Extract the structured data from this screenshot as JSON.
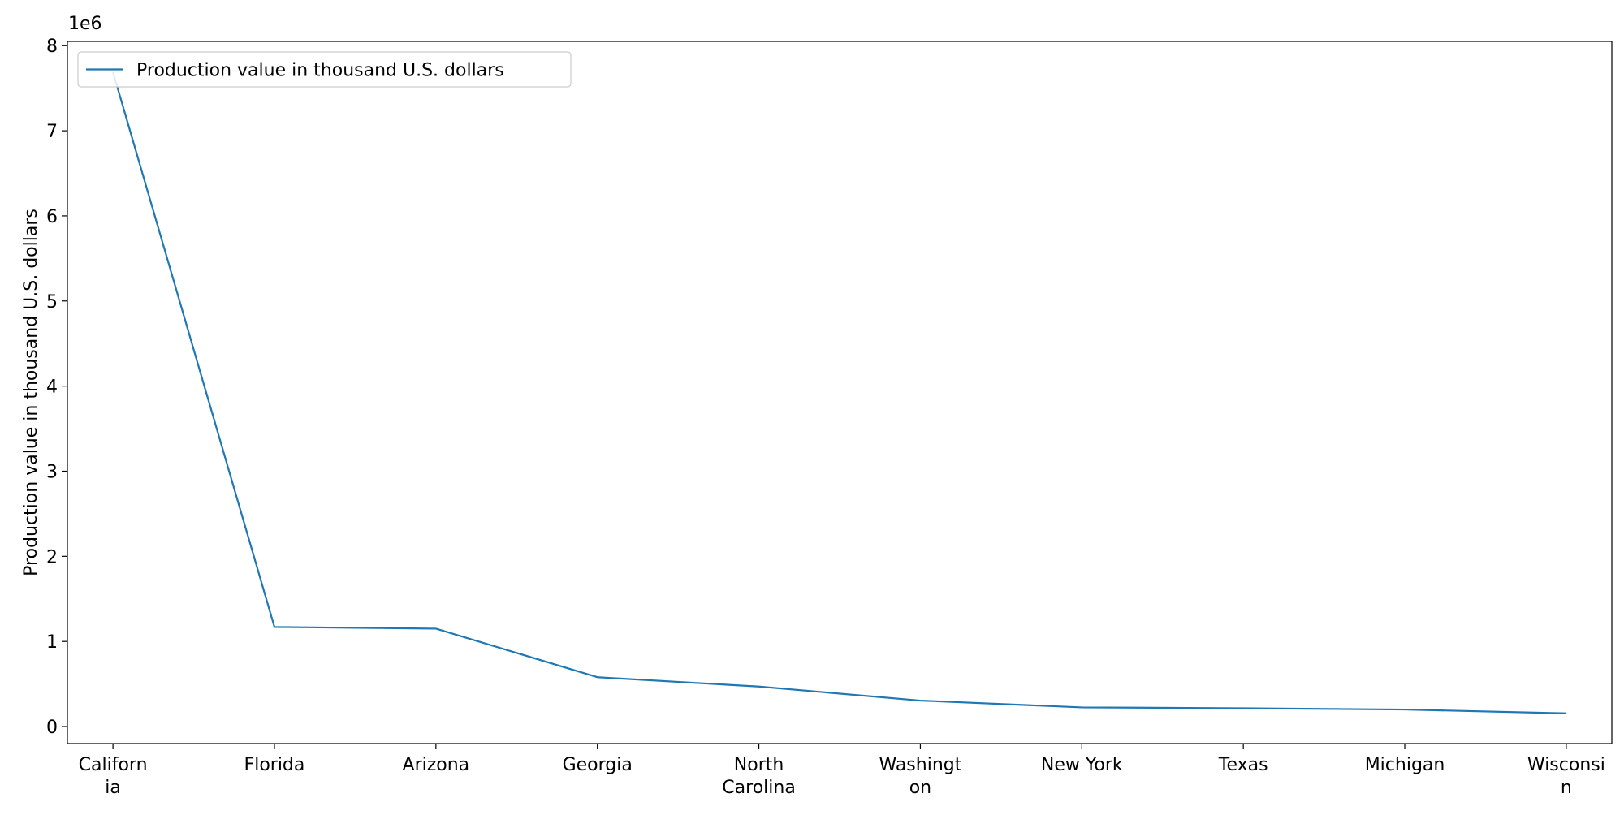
{
  "chart_data": {
    "type": "line",
    "categories": [
      "Californ\nia",
      "Florida",
      "Arizona",
      "Georgia",
      "North\nCarolina",
      "Washingt\non",
      "New York",
      "Texas",
      "Michigan",
      "Wisconsi\nn"
    ],
    "series": [
      {
        "name": "Production value in thousand U.S. dollars",
        "values": [
          7690000,
          1170000,
          1150000,
          580000,
          470000,
          305000,
          225000,
          215000,
          200000,
          155000
        ],
        "color": "#1f77b4"
      }
    ],
    "ylabel": "Production value in thousand U.S. dollars",
    "xlabel": "",
    "ylim": [
      -200000,
      8050000
    ],
    "yticks": [
      0,
      1000000,
      2000000,
      3000000,
      4000000,
      5000000,
      6000000,
      7000000,
      8000000
    ],
    "ytick_labels": [
      "0",
      "1",
      "2",
      "3",
      "4",
      "5",
      "6",
      "7",
      "8"
    ],
    "scale_label": "1e6",
    "legend_position": "top-left",
    "grid": false
  }
}
